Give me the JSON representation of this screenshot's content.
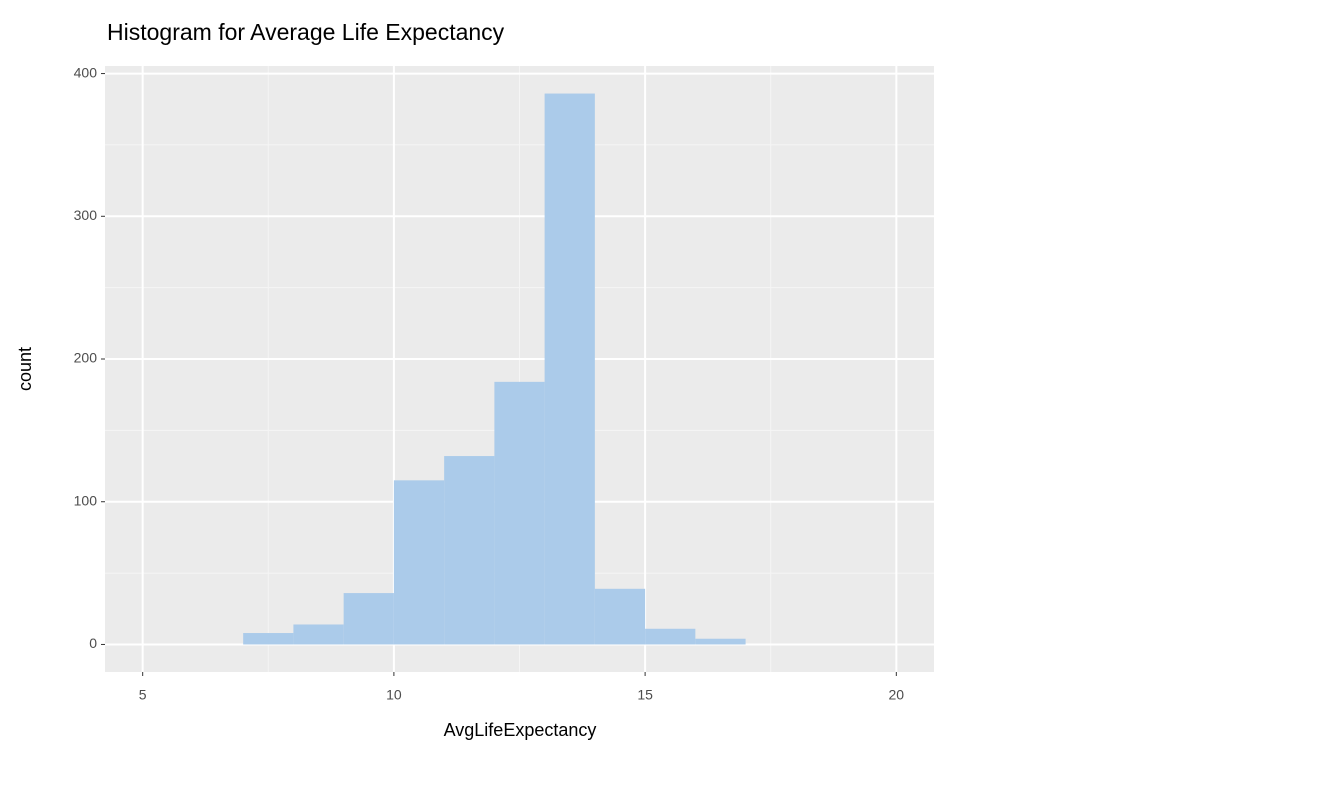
{
  "chart_data": {
    "type": "histogram",
    "title": "Histogram for Average Life Expectancy",
    "x_label": "AvgLifeExpectancy",
    "y_label": "count",
    "bins": [
      5,
      6,
      7,
      8,
      9,
      10,
      11,
      12,
      13,
      14,
      15,
      16,
      17,
      18,
      19,
      20
    ],
    "values": [
      0,
      0,
      8,
      14,
      36,
      115,
      132,
      184,
      386,
      39,
      11,
      4,
      0,
      0,
      0
    ],
    "color": "#abcbea",
    "xlim": [
      4.25,
      20.75
    ],
    "xticks": [
      5,
      10,
      15,
      20
    ],
    "x_minor_grid": [
      7.5,
      12.5,
      17.5
    ],
    "ylim": [
      -19.3,
      405.3
    ],
    "yticks": [
      0,
      100,
      200,
      300,
      400
    ],
    "y_minor_grid": [
      50,
      150,
      250,
      350
    ],
    "grid": true
  }
}
